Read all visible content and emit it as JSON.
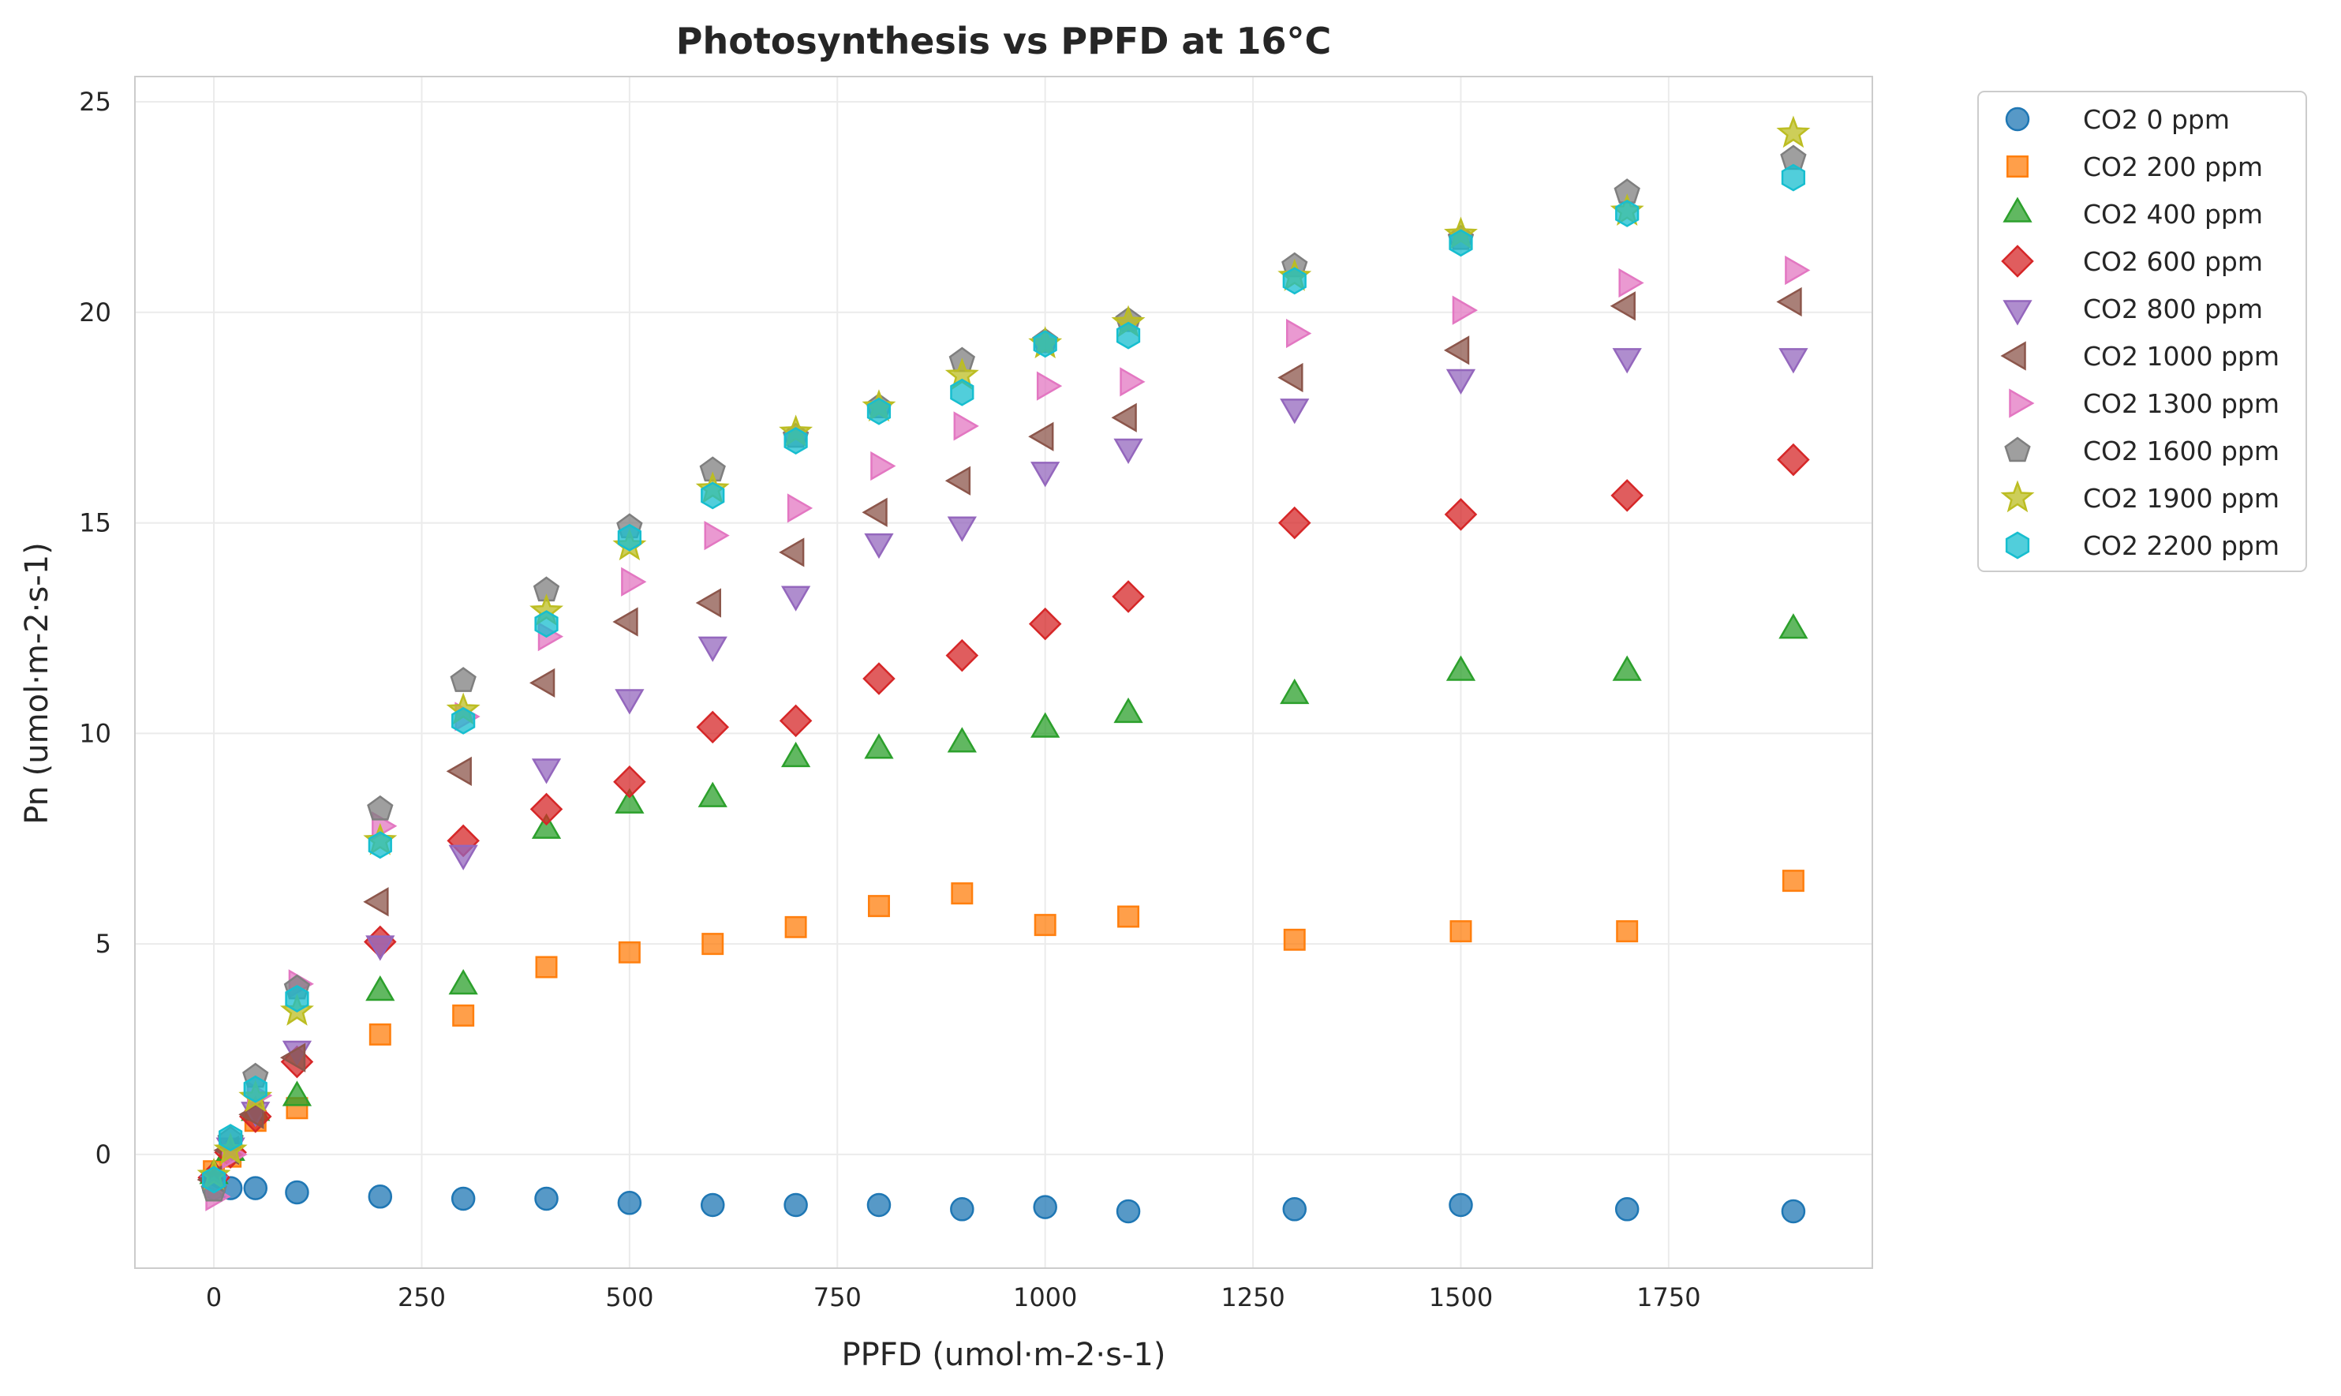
{
  "chart_data": {
    "type": "scatter",
    "title": "Photosynthesis vs PPFD at 16°C",
    "xlabel": "PPFD (umol·m-2·s-1)",
    "ylabel": "Pn (umol·m-2·s-1)",
    "xlim": [
      -95,
      1995
    ],
    "ylim": [
      -2.7,
      25.6
    ],
    "xticks": [
      0,
      250,
      500,
      750,
      1000,
      1250,
      1500,
      1750
    ],
    "yticks": [
      0,
      5,
      10,
      15,
      20,
      25
    ],
    "grid": true,
    "legend_position": "outside-top-right",
    "x": [
      0,
      20,
      50,
      100,
      200,
      300,
      400,
      500,
      600,
      700,
      800,
      900,
      1000,
      1100,
      1300,
      1500,
      1700,
      1900
    ],
    "series": [
      {
        "name": "CO2 0 ppm",
        "marker": "circle",
        "color": "#1f77b4",
        "values": [
          -0.8,
          -0.8,
          -0.8,
          -0.9,
          -1.0,
          -1.05,
          -1.05,
          -1.15,
          -1.2,
          -1.2,
          -1.2,
          -1.3,
          -1.25,
          -1.35,
          -1.3,
          -1.2,
          -1.3,
          -1.35
        ]
      },
      {
        "name": "CO2 200 ppm",
        "marker": "square",
        "color": "#ff7f0e",
        "values": [
          -0.4,
          -0.05,
          0.8,
          1.1,
          2.85,
          3.3,
          4.45,
          4.8,
          5.0,
          5.4,
          5.9,
          6.2,
          5.45,
          5.65,
          5.1,
          5.3,
          5.3,
          6.5
        ]
      },
      {
        "name": "CO2 400 ppm",
        "marker": "triangle-up",
        "color": "#2ca02c",
        "values": [
          -0.5,
          0.05,
          1.0,
          1.35,
          3.85,
          4.0,
          7.7,
          8.3,
          8.45,
          9.4,
          9.6,
          9.75,
          10.1,
          10.45,
          10.9,
          11.45,
          11.45,
          12.45
        ]
      },
      {
        "name": "CO2 600 ppm",
        "marker": "diamond",
        "color": "#d62728",
        "values": [
          -0.55,
          0.05,
          0.9,
          2.2,
          5.05,
          7.45,
          8.2,
          8.85,
          10.15,
          10.3,
          11.3,
          11.85,
          12.6,
          13.25,
          15.0,
          15.2,
          15.65,
          16.5
        ]
      },
      {
        "name": "CO2 800 ppm",
        "marker": "triangle-down",
        "color": "#9467bd",
        "values": [
          -0.7,
          0.2,
          1.05,
          2.5,
          5.0,
          7.15,
          9.2,
          10.85,
          12.1,
          13.3,
          14.55,
          14.95,
          16.25,
          16.8,
          17.75,
          18.45,
          18.95,
          18.95
        ]
      },
      {
        "name": "CO2 1000 ppm",
        "marker": "triangle-left",
        "color": "#8c564b",
        "values": [
          -0.6,
          0.1,
          0.95,
          2.3,
          6.0,
          9.1,
          11.2,
          12.65,
          13.1,
          14.3,
          15.25,
          16.0,
          17.05,
          17.5,
          18.45,
          19.1,
          20.15,
          20.25
        ]
      },
      {
        "name": "CO2 1300 ppm",
        "marker": "triangle-right",
        "color": "#e377c2",
        "values": [
          -1.0,
          0.0,
          1.4,
          4.05,
          7.8,
          10.4,
          12.3,
          13.6,
          14.7,
          15.35,
          16.35,
          17.3,
          18.25,
          18.35,
          19.5,
          20.05,
          20.7,
          21.0
        ]
      },
      {
        "name": "CO2 1600 ppm",
        "marker": "pentagon",
        "color": "#7f7f7f",
        "values": [
          -0.85,
          0.35,
          1.85,
          3.95,
          8.2,
          11.25,
          13.4,
          14.9,
          16.25,
          17.05,
          17.75,
          18.85,
          19.3,
          19.8,
          21.1,
          21.75,
          22.85,
          23.65
        ]
      },
      {
        "name": "CO2 1900 ppm",
        "marker": "star",
        "color": "#bcbd22",
        "values": [
          -0.5,
          0.1,
          1.35,
          3.4,
          7.45,
          10.55,
          12.9,
          14.45,
          15.8,
          17.15,
          17.75,
          18.5,
          19.25,
          19.75,
          20.85,
          21.85,
          22.4,
          24.25
        ]
      },
      {
        "name": "CO2 2200 ppm",
        "marker": "hexagon",
        "color": "#17becf",
        "values": [
          -0.6,
          0.4,
          1.55,
          3.7,
          7.35,
          10.3,
          12.6,
          14.65,
          15.65,
          16.95,
          17.65,
          18.1,
          19.25,
          19.45,
          20.75,
          21.65,
          22.35,
          23.2
        ]
      }
    ]
  }
}
